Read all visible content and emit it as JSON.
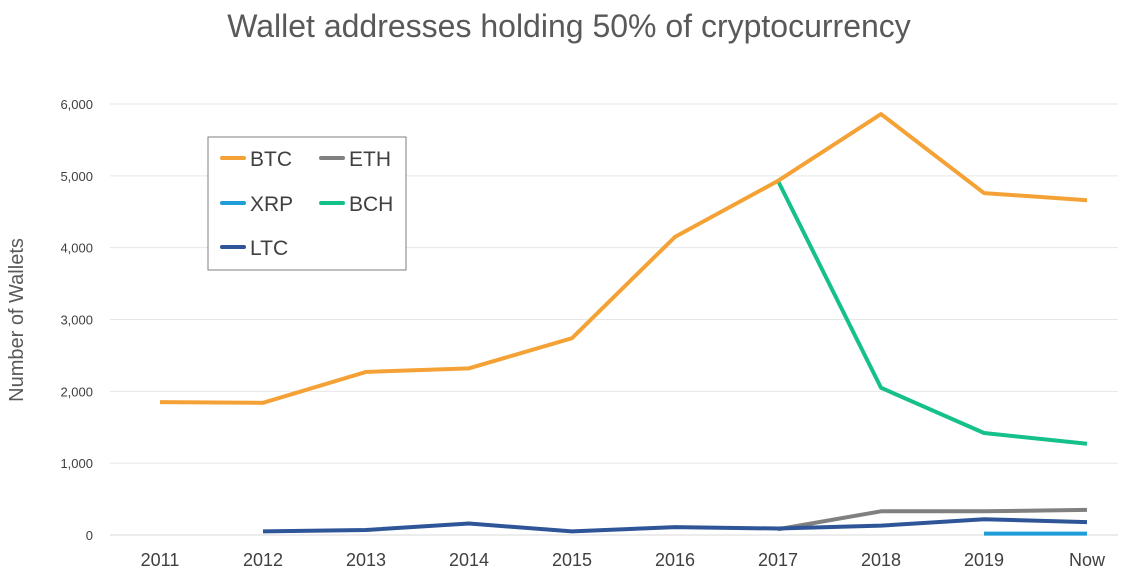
{
  "chart_data": {
    "type": "line",
    "title": "Wallet addresses holding 50% of cryptocurrency",
    "xlabel": "",
    "ylabel": "Number of Wallets",
    "categories": [
      "2011",
      "2012",
      "2013",
      "2014",
      "2015",
      "2016",
      "2017",
      "2018",
      "2019",
      "Now"
    ],
    "ylim": [
      0,
      6000
    ],
    "yticks": [
      0,
      1000,
      2000,
      3000,
      4000,
      5000,
      6000
    ],
    "ytick_labels": [
      "0",
      "1,000",
      "2,000",
      "3,000",
      "4,000",
      "5,000",
      "6,000"
    ],
    "grid": true,
    "legend_position": "top-left",
    "series": [
      {
        "name": "BTC",
        "color": "#F4A236",
        "values": [
          1850,
          1840,
          2270,
          2320,
          2740,
          4150,
          4930,
          5860,
          4760,
          4660
        ]
      },
      {
        "name": "ETH",
        "color": "#808080",
        "values": [
          null,
          null,
          null,
          null,
          null,
          null,
          80,
          330,
          330,
          350
        ]
      },
      {
        "name": "XRP",
        "color": "#1E9DD8",
        "values": [
          null,
          null,
          null,
          null,
          null,
          null,
          null,
          null,
          20,
          20
        ]
      },
      {
        "name": "BCH",
        "color": "#16C08B",
        "values": [
          null,
          null,
          null,
          null,
          null,
          null,
          4930,
          2050,
          1420,
          1270
        ]
      },
      {
        "name": "LTC",
        "color": "#2E5597",
        "values": [
          null,
          50,
          70,
          160,
          50,
          110,
          90,
          130,
          220,
          180
        ]
      }
    ]
  }
}
